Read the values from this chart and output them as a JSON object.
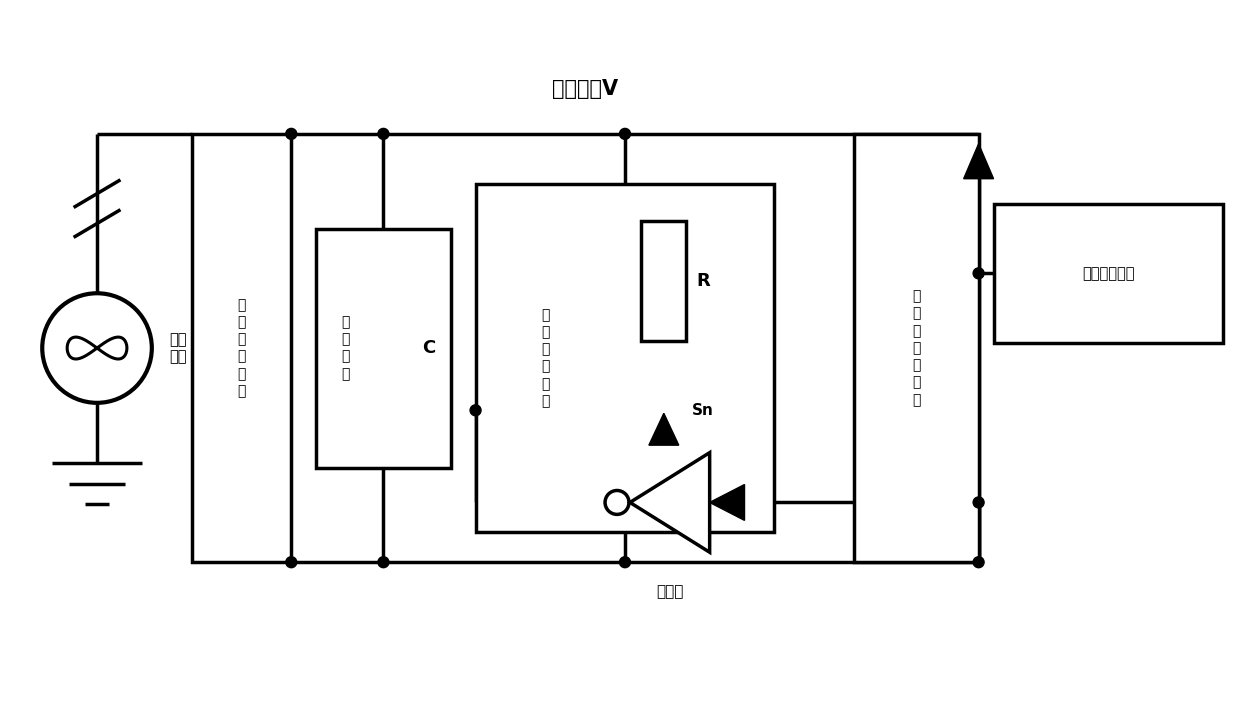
{
  "bg": "#ffffff",
  "lc": "#000000",
  "lw": 2.5,
  "title": "母线电压V",
  "label_supply": "供电\n电源",
  "label_power_net": "电\n源\n匹\n配\n网\n络",
  "label_storage": "储\n能\n电\n容",
  "label_C": "C",
  "label_pulse_net": "脉\n冲\n匹\n配\n网\n络",
  "label_R": "R",
  "label_Sn": "Sn",
  "label_load": "大\n功\n率\n脉\n冲\n负\n载",
  "label_inverter": "反向器",
  "label_timing": "时序发生设备"
}
